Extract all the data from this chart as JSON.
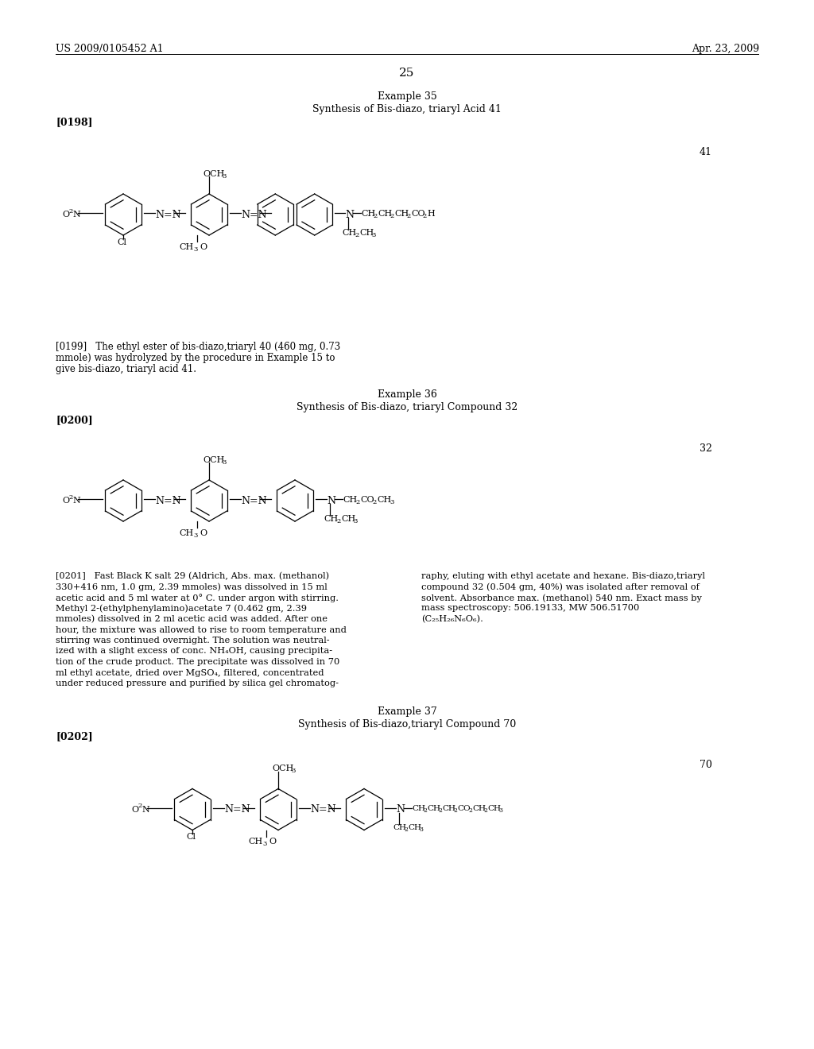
{
  "page_number": "25",
  "patent_left": "US 2009/0105452 A1",
  "patent_right": "Apr. 23, 2009",
  "background_color": "#ffffff",
  "text_color": "#000000",
  "sections": [
    {
      "heading1": "Example 35",
      "heading2": "Synthesis of Bis-diazo, triaryl Acid 41",
      "tag": "[0198]",
      "compound_number": "41",
      "compound_type": "diazo_acid_41"
    },
    {
      "paragraph": "[0199]  The ethyl ester of bis-diazo,triaryl 40 (460 mg, 0.73 mmole) was hydrolyzed by the procedure in Example 15 to give bis-diazo, triaryl acid 41.",
      "heading1": "Example 36",
      "heading2": "Synthesis of Bis-diazo, triaryl Compound 32",
      "tag": "[0200]",
      "compound_number": "32",
      "compound_type": "diazo_32"
    },
    {
      "paragraph_left": "[0201]  Fast Black K salt 29 (Aldrich, Abs. max. (methanol) 330+416 nm, 1.0 gm, 2.39 mmoles) was dissolved in 15 ml acetic acid and 5 ml water at 0° C. under argon with stirring. Methyl 2-(ethylphenylamino)acetate 7 (0.462 gm, 2.39 mmoles) dissolved in 2 ml acetic acid was added. After one hour, the mixture was allowed to rise to room temperature and stirring was continued overnight. The solution was neutralized with a slight excess of conc. NH₄OH, causing precipitation of the crude product. The precipitate was dissolved in 70 ml ethyl acetate, dried over MgSO₄, filtered, concentrated under reduced pressure and purified by silica gel chromatog-",
      "paragraph_right": "raphy, eluting with ethyl acetate and hexane. Bis-diazo,triaryl compound 32 (0.504 gm, 40%) was isolated after removal of solvent. Absorbance max. (methanol) 540 nm. Exact mass by mass spectroscopy: 506.19133, MW 506.51700 (C₂₅H₂₆N₆O₆).",
      "heading1": "Example 37",
      "heading2": "Synthesis of Bis-diazo,triaryl Compound 70",
      "tag": "[0202]",
      "compound_number": "70",
      "compound_type": "diazo_70"
    }
  ]
}
